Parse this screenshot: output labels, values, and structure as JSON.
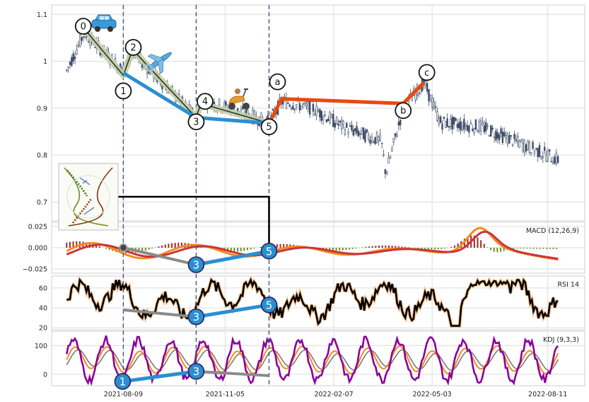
{
  "chart_data": [
    {
      "type": "candlestick",
      "panel": "price",
      "ylim": [
        0.66,
        1.12
      ],
      "yticks": [
        0.7,
        0.8,
        0.9,
        1.0,
        1.1
      ],
      "grid": true,
      "wave_labels": [
        "0",
        "1",
        "2",
        "3",
        "4",
        "5",
        "a",
        "b",
        "c"
      ],
      "wave_points": [
        {
          "label": "0",
          "date": "2021-07-06",
          "value": 1.07
        },
        {
          "label": "1",
          "date": "2021-08-09",
          "value": 0.97
        },
        {
          "label": "2",
          "date": "2021-08-17",
          "value": 1.025
        },
        {
          "label": "3",
          "date": "2021-10-11",
          "value": 0.88
        },
        {
          "label": "4",
          "date": "2021-10-15",
          "value": 0.91
        },
        {
          "label": "5",
          "date": "2021-12-13",
          "value": 0.868
        },
        {
          "label": "a",
          "date": "2021-12-24",
          "value": 0.92
        },
        {
          "label": "b",
          "date": "2022-04-08",
          "value": 0.91
        },
        {
          "label": "c",
          "date": "2022-04-26",
          "value": 0.955
        }
      ],
      "blue_trend": [
        {
          "date": "2021-08-09",
          "value": 0.975
        },
        {
          "date": "2021-10-11",
          "value": 0.88
        },
        {
          "date": "2021-12-13",
          "value": 0.868
        }
      ],
      "red_trend": [
        {
          "date": "2021-12-13",
          "value": 0.868
        },
        {
          "date": "2021-12-24",
          "value": 0.92
        },
        {
          "date": "2022-04-08",
          "value": 0.91
        },
        {
          "date": "2022-04-26",
          "value": 0.955
        }
      ],
      "vertical_lines": [
        "2021-08-09",
        "2021-10-11",
        "2021-12-13"
      ]
    },
    {
      "type": "line",
      "panel": "macd",
      "label": "MACD (12,26,9)",
      "ylim": [
        -0.03,
        0.03
      ],
      "yticks": [
        0.025,
        0.0,
        -0.025
      ],
      "ytick_labels": [
        "0.025",
        "0.000",
        "−0.025"
      ],
      "markers": [
        "3",
        "5"
      ]
    },
    {
      "type": "line",
      "panel": "rsi",
      "label": "RSI 14",
      "ylim": [
        18,
        72
      ],
      "yticks": [
        60,
        40,
        20
      ],
      "markers": [
        "3",
        "5"
      ]
    },
    {
      "type": "line",
      "panel": "kdj",
      "label": "KDJ (9,3,3)",
      "ylim": [
        -40,
        150
      ],
      "yticks": [
        100,
        0
      ],
      "markers": [
        "1",
        "3"
      ]
    }
  ],
  "xaxis": {
    "tick_labels": [
      "2021-08-09",
      "2021-11-05",
      "2022-02-07",
      "2022-05-03",
      "2022-08-11"
    ]
  },
  "colors": {
    "candle": "#3d4b66",
    "blue_trend": "#2a8fd0",
    "red_trend": "#e84a10",
    "macd_fast": "#f58a1f",
    "macd_slow": "#c9353b",
    "hist_pos": "#9e2a2a",
    "hist_neg": "#6e8f1e",
    "kdj_k": "#f58a1f",
    "kdj_j": "#8b0099"
  },
  "icons": [
    "car-icon",
    "airplane-icon",
    "scooter-icon",
    "dna-helix-icon"
  ]
}
